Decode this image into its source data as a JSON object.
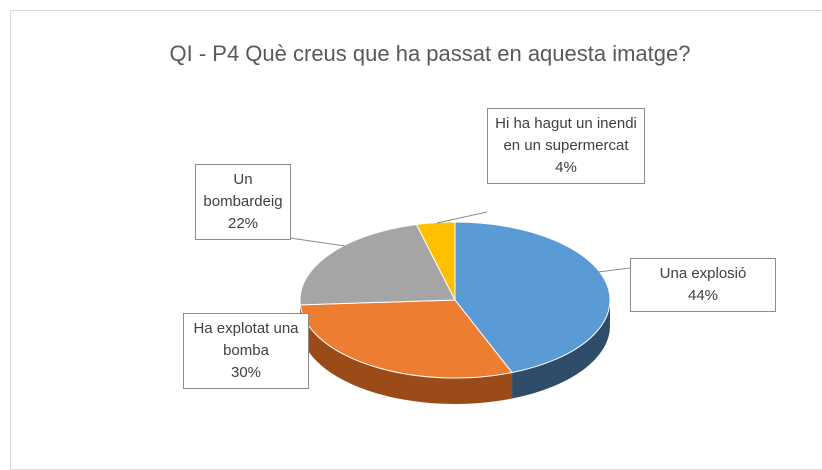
{
  "chart_data": {
    "type": "pie",
    "title": "QI - P4 Què creus que ha passat en aquesta imatge?",
    "categories": [
      "Una explosió",
      "Ha explotat una bomba",
      "Un bombardeig",
      "Hi ha hagut un inendi en un supermercat"
    ],
    "values": [
      44,
      30,
      22,
      4
    ],
    "value_labels": [
      "44%",
      "30%",
      "22%",
      "4%"
    ],
    "colors": [
      "#5b9bd5",
      "#ed7d31",
      "#a5a5a5",
      "#ffc000"
    ],
    "side_colors": [
      "#2f4d68",
      "#9a4b17",
      "#6e6e6e",
      "#a87f00"
    ]
  }
}
